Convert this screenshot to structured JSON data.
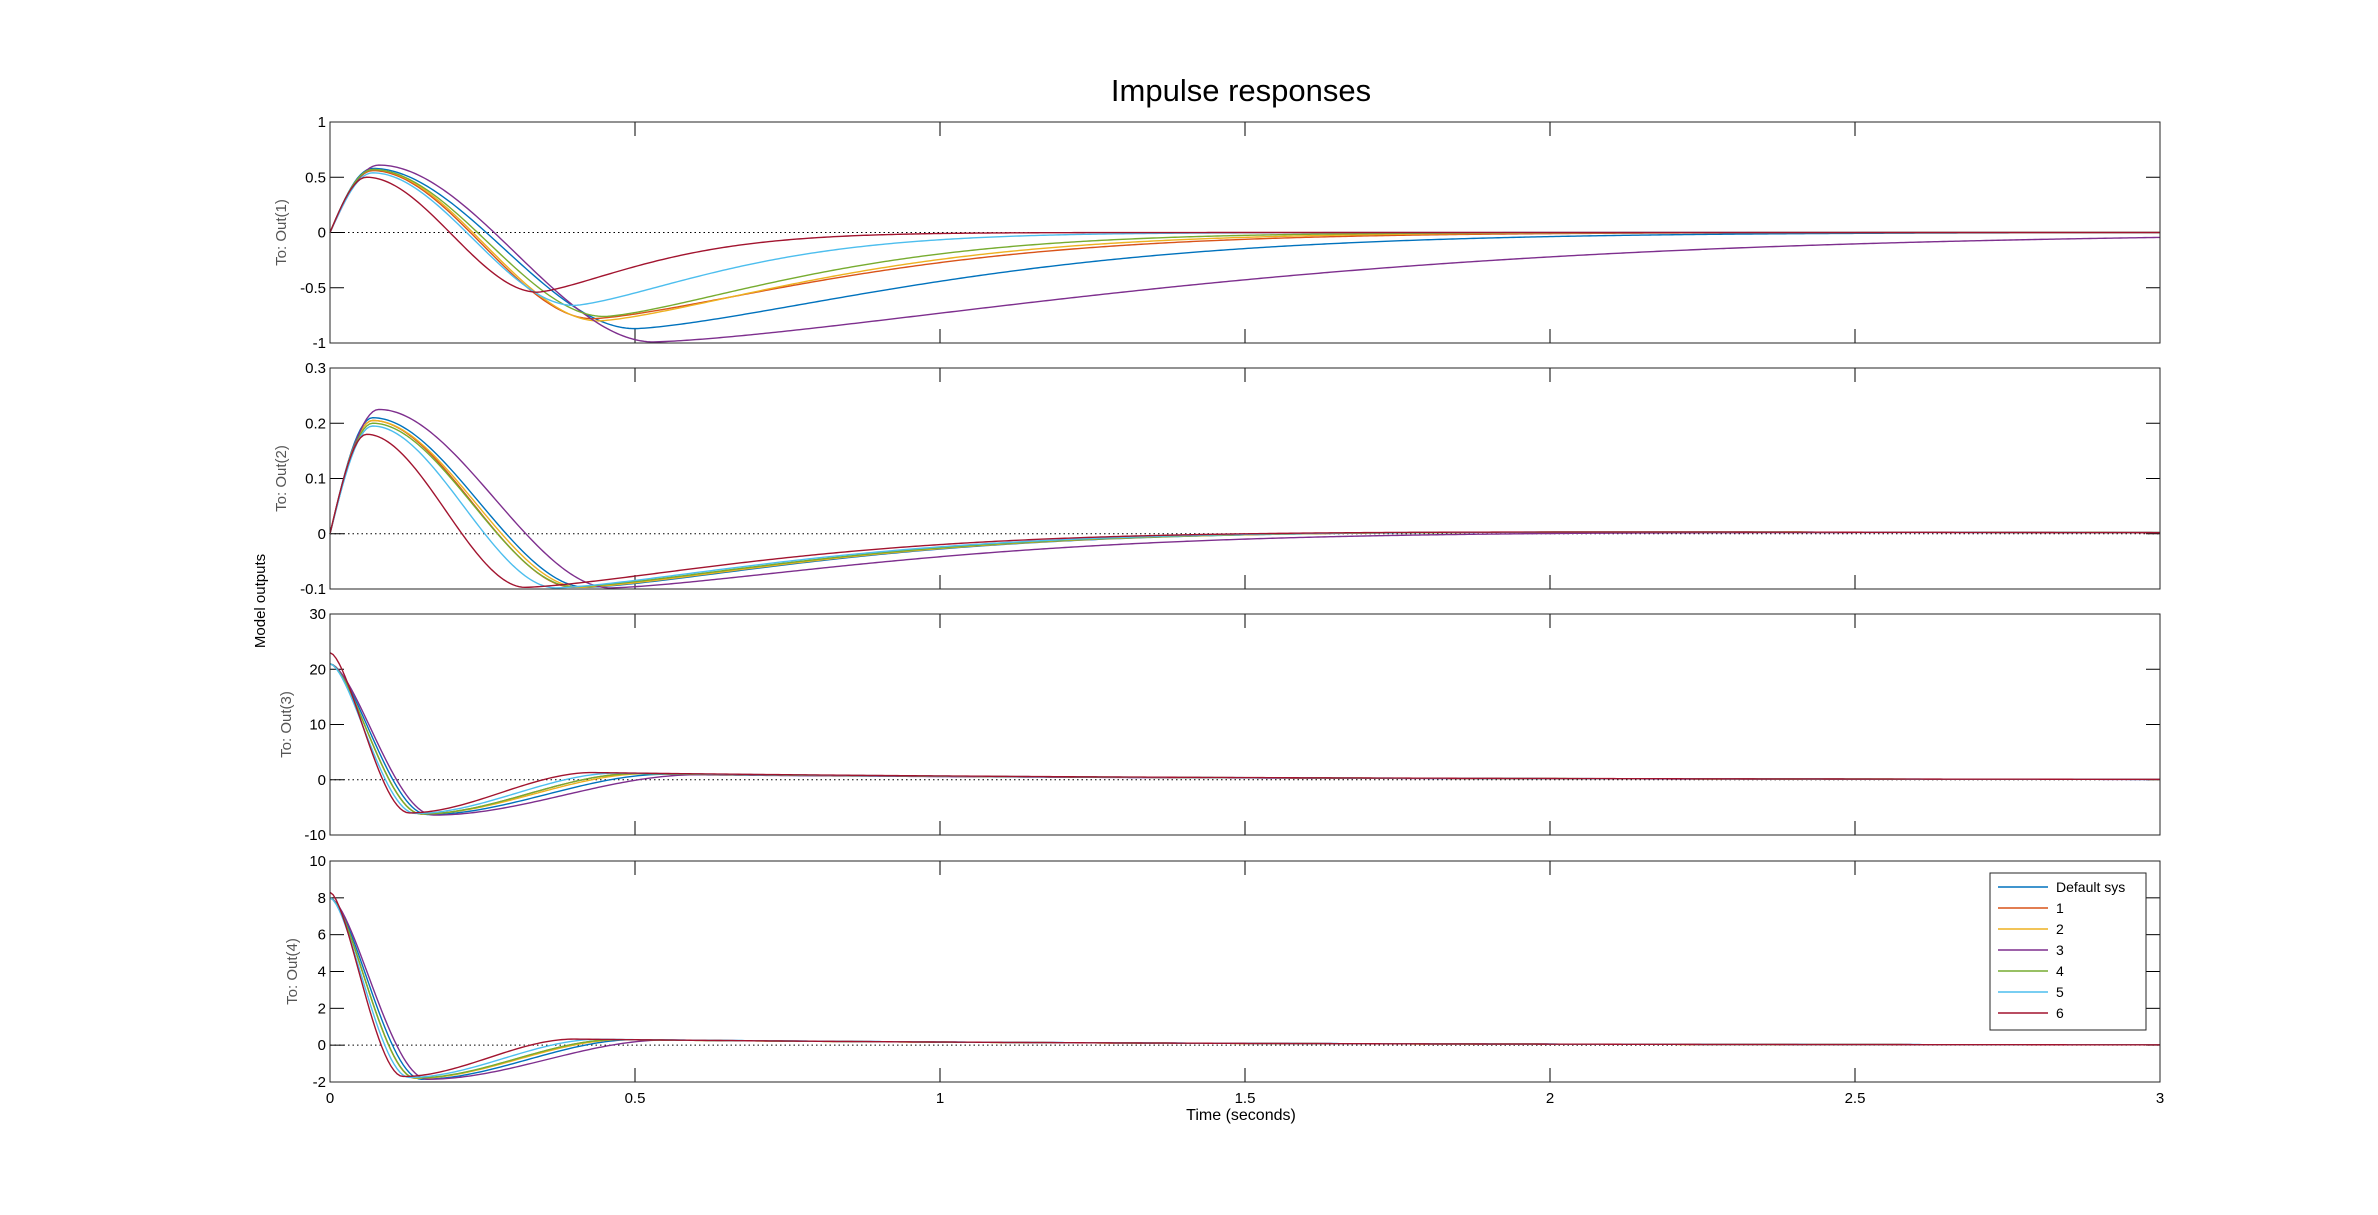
{
  "chart_data": {
    "type": "line",
    "title": "Impulse responses",
    "xlabel": "Time (seconds)",
    "ylabel": "Model outputs",
    "xlim": [
      0,
      3
    ],
    "xticks": [
      "0",
      "0.5",
      "1",
      "1.5",
      "2",
      "2.5",
      "3"
    ],
    "xtick_values": [
      0,
      0.5,
      1,
      1.5,
      2,
      2.5,
      3
    ],
    "grid": false,
    "legend_position": "top-right of bottom subplot",
    "legend": [
      {
        "label": "Default sys",
        "color": "#0072BD"
      },
      {
        "label": "1",
        "color": "#D95319"
      },
      {
        "label": "2",
        "color": "#EDB120"
      },
      {
        "label": "3",
        "color": "#7E2F8E"
      },
      {
        "label": "4",
        "color": "#77AC30"
      },
      {
        "label": "5",
        "color": "#4DBEEE"
      },
      {
        "label": "6",
        "color": "#A2142F"
      }
    ],
    "subplots": [
      {
        "ylabel": "To: Out(1)",
        "ylim": [
          -1,
          1
        ],
        "yticks": [
          "1",
          "0.5",
          "0",
          "-0.5",
          "-1"
        ],
        "ytick_values": [
          1,
          0.5,
          0,
          -0.5,
          -1
        ],
        "series": [
          {
            "label": "Default sys",
            "peak_t": 0.07,
            "peak": 0.58,
            "trough_t": 0.5,
            "trough": -0.87,
            "tail": 0.0,
            "decay": 0.6
          },
          {
            "label": "1",
            "peak_t": 0.07,
            "peak": 0.56,
            "trough_t": 0.43,
            "trough": -0.78,
            "tail": 0.0,
            "decay": 0.5
          },
          {
            "label": "2",
            "peak_t": 0.07,
            "peak": 0.57,
            "trough_t": 0.44,
            "trough": -0.8,
            "tail": 0.0,
            "decay": 0.45
          },
          {
            "label": "3",
            "peak_t": 0.08,
            "peak": 0.61,
            "trough_t": 0.53,
            "trough": -0.99,
            "tail": 0.0,
            "decay": 1.0
          },
          {
            "label": "4",
            "peak_t": 0.07,
            "peak": 0.57,
            "trough_t": 0.45,
            "trough": -0.76,
            "tail": 0.0,
            "decay": 0.4
          },
          {
            "label": "5",
            "peak_t": 0.07,
            "peak": 0.54,
            "trough_t": 0.4,
            "trough": -0.66,
            "tail": 0.0,
            "decay": 0.3
          },
          {
            "label": "6",
            "peak_t": 0.06,
            "peak": 0.5,
            "trough_t": 0.34,
            "trough": -0.54,
            "tail": 0.0,
            "decay": 0.22
          }
        ]
      },
      {
        "ylabel": "To: Out(2)",
        "ylim": [
          -0.1,
          0.3
        ],
        "yticks": [
          "0.3",
          "0.2",
          "0.1",
          "0",
          "-0.1"
        ],
        "ytick_values": [
          0.3,
          0.2,
          0.1,
          0,
          -0.1
        ],
        "series": [
          {
            "label": "Default sys",
            "peak_t": 0.07,
            "peak": 0.21,
            "trough_t": 0.42,
            "trough": -0.097,
            "tail": 0.012,
            "decay": 0.5
          },
          {
            "label": "1",
            "peak_t": 0.07,
            "peak": 0.205,
            "trough_t": 0.4,
            "trough": -0.097,
            "tail": 0.012,
            "decay": 0.5
          },
          {
            "label": "2",
            "peak_t": 0.07,
            "peak": 0.205,
            "trough_t": 0.41,
            "trough": -0.097,
            "tail": 0.012,
            "decay": 0.5
          },
          {
            "label": "3",
            "peak_t": 0.08,
            "peak": 0.225,
            "trough_t": 0.46,
            "trough": -0.098,
            "tail": 0.012,
            "decay": 0.6
          },
          {
            "label": "4",
            "peak_t": 0.07,
            "peak": 0.2,
            "trough_t": 0.4,
            "trough": -0.096,
            "tail": 0.012,
            "decay": 0.5
          },
          {
            "label": "5",
            "peak_t": 0.07,
            "peak": 0.195,
            "trough_t": 0.37,
            "trough": -0.098,
            "tail": 0.012,
            "decay": 0.5
          },
          {
            "label": "6",
            "peak_t": 0.06,
            "peak": 0.18,
            "trough_t": 0.32,
            "trough": -0.097,
            "tail": 0.012,
            "decay": 0.5
          }
        ]
      },
      {
        "ylabel": "To: Out(3)",
        "ylim": [
          -10,
          30
        ],
        "yticks": [
          "30",
          "20",
          "10",
          "0",
          "-10"
        ],
        "ytick_values": [
          30,
          20,
          10,
          0,
          -10
        ],
        "series": [
          {
            "label": "Default sys",
            "start": 21,
            "trough_t": 0.16,
            "trough": -6.3,
            "tail": 1.0,
            "tail_t": 0.55
          },
          {
            "label": "1",
            "start": 21,
            "trough_t": 0.15,
            "trough": -6.2,
            "tail": 1.1,
            "tail_t": 0.5
          },
          {
            "label": "2",
            "start": 21,
            "trough_t": 0.15,
            "trough": -6.2,
            "tail": 1.1,
            "tail_t": 0.52
          },
          {
            "label": "3",
            "start": 21,
            "trough_t": 0.17,
            "trough": -6.4,
            "tail": 0.9,
            "tail_t": 0.6
          },
          {
            "label": "4",
            "start": 21,
            "trough_t": 0.15,
            "trough": -6.2,
            "tail": 1.1,
            "tail_t": 0.5
          },
          {
            "label": "5",
            "start": 21,
            "trough_t": 0.14,
            "trough": -6.1,
            "tail": 1.2,
            "tail_t": 0.47
          },
          {
            "label": "6",
            "start": 23,
            "trough_t": 0.13,
            "trough": -6.0,
            "tail": 1.3,
            "tail_t": 0.43
          }
        ]
      },
      {
        "ylabel": "To: Out(4)",
        "ylim": [
          -2,
          10
        ],
        "yticks": [
          "10",
          "8",
          "6",
          "4",
          "2",
          "0",
          "-2"
        ],
        "ytick_values": [
          10,
          8,
          6,
          4,
          2,
          0,
          -2
        ],
        "series": [
          {
            "label": "Default sys",
            "start": 8,
            "trough_t": 0.15,
            "trough": -1.85,
            "tail": 0.3,
            "tail_t": 0.5
          },
          {
            "label": "1",
            "start": 8,
            "trough_t": 0.14,
            "trough": -1.8,
            "tail": 0.3,
            "tail_t": 0.47
          },
          {
            "label": "2",
            "start": 8,
            "trough_t": 0.14,
            "trough": -1.8,
            "tail": 0.3,
            "tail_t": 0.48
          },
          {
            "label": "3",
            "start": 8,
            "trough_t": 0.16,
            "trough": -1.85,
            "tail": 0.28,
            "tail_t": 0.55
          },
          {
            "label": "4",
            "start": 8,
            "trough_t": 0.14,
            "trough": -1.78,
            "tail": 0.3,
            "tail_t": 0.47
          },
          {
            "label": "5",
            "start": 8,
            "trough_t": 0.13,
            "trough": -1.75,
            "tail": 0.32,
            "tail_t": 0.44
          },
          {
            "label": "6",
            "start": 8.3,
            "trough_t": 0.12,
            "trough": -1.7,
            "tail": 0.33,
            "tail_t": 0.4
          }
        ]
      }
    ]
  }
}
